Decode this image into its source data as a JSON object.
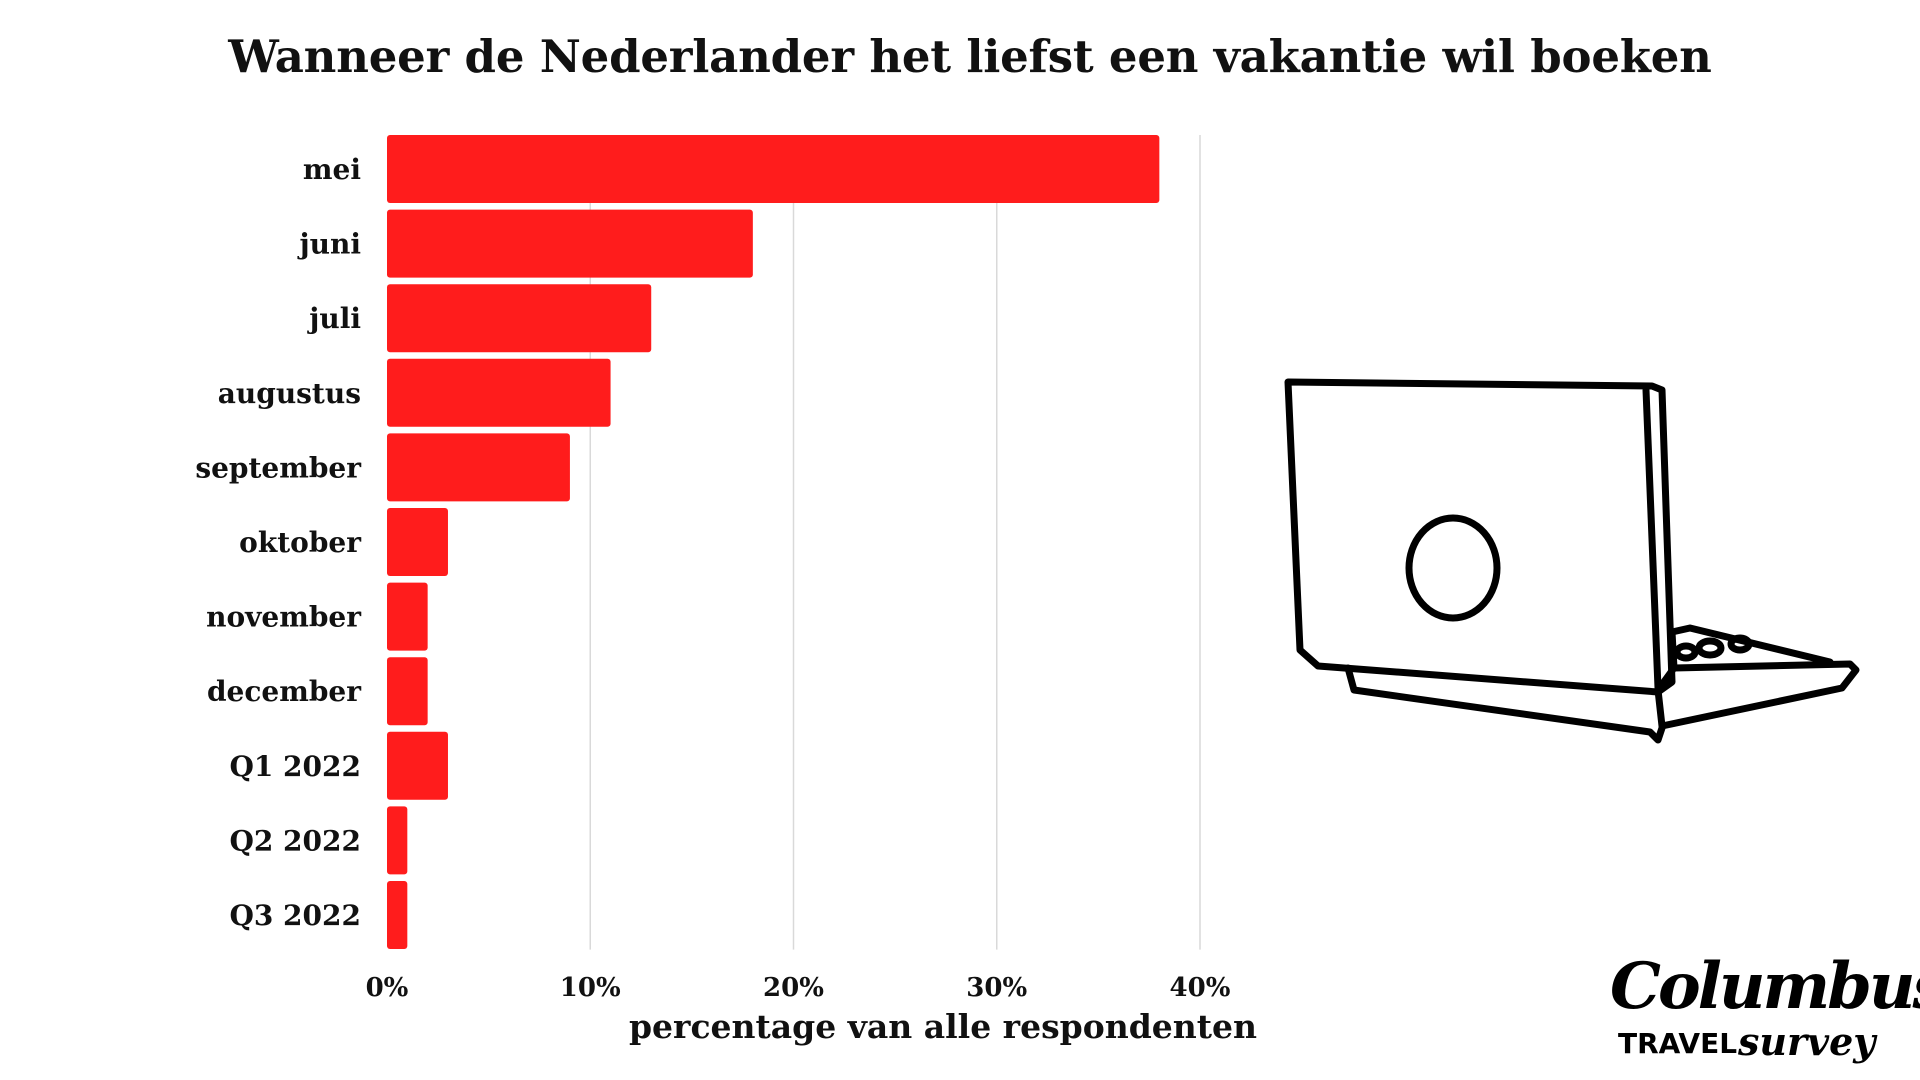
{
  "chart_data": {
    "type": "bar",
    "orientation": "horizontal",
    "title": "Wanneer de Nederlander het liefst een vakantie wil boeken",
    "xlabel": "percentage van alle respondenten",
    "ylabel": "",
    "categories": [
      "mei",
      "juni",
      "juli",
      "augustus",
      "september",
      "oktober",
      "november",
      "december",
      "Q1 2022",
      "Q2 2022",
      "Q3 2022"
    ],
    "values": [
      38,
      18,
      13,
      11,
      9,
      3,
      2,
      2,
      3,
      1,
      1
    ],
    "xlim": [
      0,
      40
    ],
    "xticks": [
      0,
      10,
      20,
      30,
      40
    ],
    "xtick_labels": [
      "0%",
      "10%",
      "20%",
      "30%",
      "40%"
    ],
    "grid": true,
    "bar_color": "#ff1c1c",
    "grid_color": "#d9d9d9"
  },
  "logo": {
    "main": "Columbus",
    "sub_left": "TRAVEL",
    "sub_right": "survey"
  },
  "illustration": {
    "icon": "laptop-icon"
  }
}
